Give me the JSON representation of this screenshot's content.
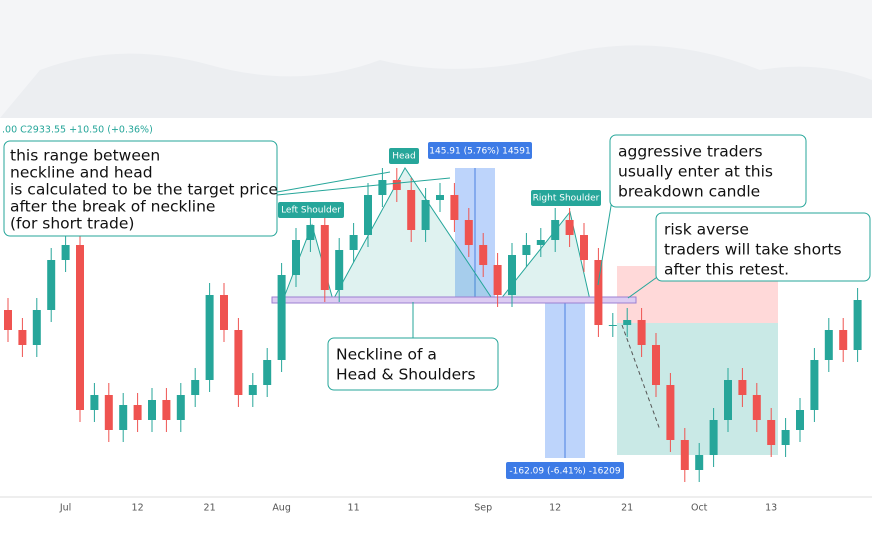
{
  "header": ".00 C2933.55 +10.50 (+0.36%)",
  "chart_data": {
    "type": "candlestick",
    "categories": [
      null,
      null,
      null,
      null,
      "Jul",
      null,
      null,
      null,
      null,
      "12",
      null,
      null,
      null,
      null,
      "21",
      null,
      null,
      null,
      null,
      "Aug",
      null,
      null,
      null,
      null,
      "11",
      null,
      null,
      null,
      null,
      null,
      null,
      null,
      null,
      "Sep",
      null,
      null,
      null,
      null,
      "12",
      null,
      null,
      null,
      null,
      "21",
      null,
      null,
      null,
      null,
      "Oct",
      null,
      null,
      null,
      null,
      "13",
      null,
      null,
      null,
      null,
      null,
      null
    ],
    "open": [
      2485,
      2465,
      2450,
      2485,
      2535,
      2550,
      2385,
      2400,
      2365,
      2390,
      2375,
      2395,
      2375,
      2400,
      2415,
      2500,
      2465,
      2400,
      2410,
      2435,
      2520,
      2555,
      2570,
      2505,
      2545,
      2560,
      2600,
      2615,
      2605,
      2565,
      2595,
      2600,
      2575,
      2550,
      2530,
      2500,
      2540,
      2550,
      2555,
      2575,
      2560,
      2535,
      2470,
      2470,
      2475,
      2450,
      2410,
      2355,
      2325,
      2340,
      2375,
      2415,
      2400,
      2375,
      2350,
      2365,
      2385,
      2435,
      2465,
      2445
    ],
    "high": [
      2497,
      2477,
      2497,
      2547,
      2562,
      2562,
      2412,
      2412,
      2402,
      2402,
      2407,
      2407,
      2412,
      2427,
      2512,
      2512,
      2477,
      2422,
      2447,
      2532,
      2567,
      2582,
      2582,
      2557,
      2572,
      2612,
      2627,
      2627,
      2617,
      2607,
      2612,
      2612,
      2587,
      2562,
      2542,
      2552,
      2562,
      2567,
      2587,
      2587,
      2572,
      2547,
      2482,
      2487,
      2487,
      2462,
      2422,
      2367,
      2352,
      2387,
      2427,
      2427,
      2412,
      2387,
      2377,
      2397,
      2447,
      2477,
      2477,
      2507
    ],
    "low": [
      2453,
      2438,
      2438,
      2473,
      2523,
      2373,
      2373,
      2353,
      2353,
      2363,
      2363,
      2363,
      2363,
      2388,
      2403,
      2453,
      2388,
      2388,
      2398,
      2423,
      2508,
      2543,
      2493,
      2493,
      2533,
      2548,
      2588,
      2593,
      2553,
      2553,
      2583,
      2563,
      2538,
      2518,
      2488,
      2488,
      2528,
      2538,
      2543,
      2548,
      2523,
      2458,
      2458,
      2458,
      2438,
      2398,
      2343,
      2313,
      2313,
      2328,
      2363,
      2388,
      2363,
      2338,
      2338,
      2353,
      2373,
      2423,
      2433,
      2433
    ],
    "close": [
      2465,
      2450,
      2485,
      2535,
      2550,
      2385,
      2400,
      2365,
      2390,
      2375,
      2395,
      2375,
      2400,
      2415,
      2500,
      2465,
      2400,
      2410,
      2435,
      2520,
      2555,
      2570,
      2505,
      2545,
      2560,
      2600,
      2615,
      2605,
      2565,
      2595,
      2600,
      2575,
      2550,
      2530,
      2500,
      2540,
      2550,
      2555,
      2575,
      2560,
      2535,
      2470,
      2470,
      2475,
      2450,
      2410,
      2355,
      2325,
      2340,
      2375,
      2415,
      2400,
      2375,
      2350,
      2365,
      2385,
      2435,
      2465,
      2445,
      2495
    ],
    "ylim": [
      2300,
      2680
    ],
    "up_color": "#26a69a",
    "down_color": "#ef5350",
    "annotations": {
      "range_note": [
        "this range between",
        "neckline and head",
        "is calculated to be the target price",
        "after the break of neckline",
        "(for short trade)"
      ],
      "head": "Head",
      "left_shoulder": "Left Shoulder",
      "right_shoulder": "Right Shoulder",
      "measure_up": "145.91 (5.76%) 14591",
      "measure_down": "-162.09 (-6.41%) -16209",
      "neckline_note": [
        "Neckline of a",
        "Head & Shoulders"
      ],
      "aggressive_note": [
        "aggressive traders",
        "usually enter at this",
        "breakdown candle"
      ],
      "risk_note": [
        "risk averse",
        "traders will take shorts",
        "after this retest."
      ]
    }
  }
}
